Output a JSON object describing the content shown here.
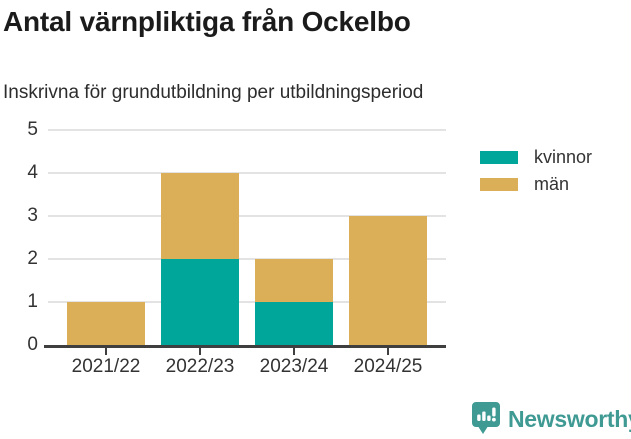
{
  "title": "Antal värnpliktiga från Ockelbo",
  "subtitle": "Inskrivna för grundutbildning per utbildningsperiod",
  "colors": {
    "kvinnor": "#00a69a",
    "man": "#dbae58",
    "brand_teal": "#3f9a93",
    "gridline": "#e3e3e3",
    "axis": "#3f3f3f",
    "axis_text": "#333333",
    "title_text": "#1b1b1b"
  },
  "chart_data": {
    "type": "bar",
    "stacked": true,
    "title": "Antal värnpliktiga från Ockelbo",
    "subtitle": "Inskrivna för grundutbildning per utbildningsperiod",
    "categories": [
      "2021/22",
      "2022/23",
      "2023/24",
      "2024/25"
    ],
    "series": [
      {
        "name": "kvinnor",
        "color": "#00a69a",
        "values": [
          0,
          2,
          1,
          0
        ]
      },
      {
        "name": "män",
        "color": "#dbae58",
        "values": [
          1,
          2,
          1,
          3
        ]
      }
    ],
    "totals": [
      1,
      4,
      2,
      3
    ],
    "xlabel": "",
    "ylabel": "",
    "ylim": [
      0,
      5
    ],
    "yticks": [
      0,
      1,
      2,
      3,
      4,
      5
    ],
    "grid": true,
    "legend_position": "right"
  },
  "legend": {
    "items": [
      {
        "label": "kvinnor"
      },
      {
        "label": "män"
      }
    ]
  },
  "footer": {
    "brand": "Newsworthy"
  }
}
